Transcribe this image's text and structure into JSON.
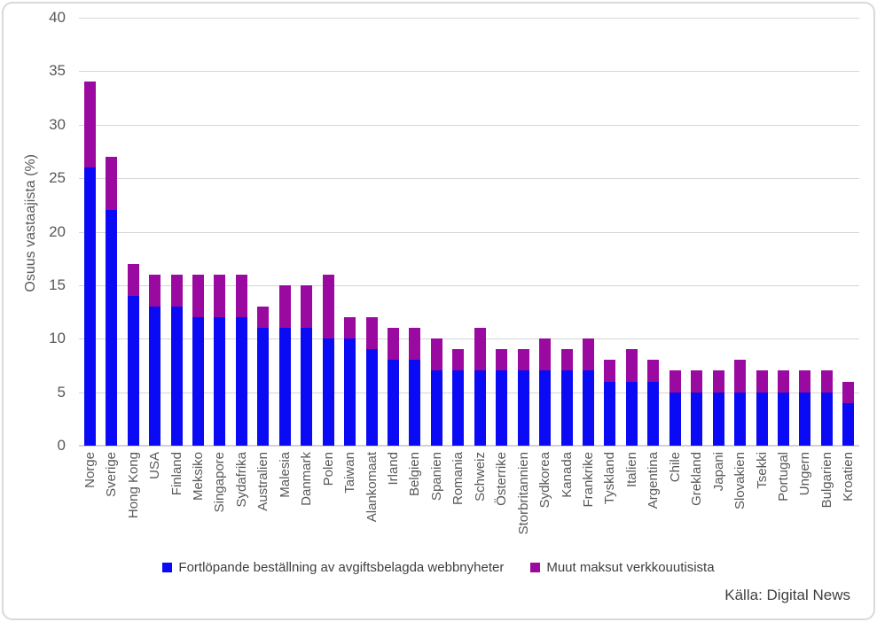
{
  "chart_data": {
    "type": "bar",
    "stacked": true,
    "ylabel": "Osuus vastaajista (%)",
    "ylim": [
      0,
      40
    ],
    "yticks": [
      0,
      5,
      10,
      15,
      20,
      25,
      30,
      35,
      40
    ],
    "grid": true,
    "legend_position": "bottom",
    "categories": [
      "Norge",
      "Sverige",
      "Hong Kong",
      "USA",
      "Finland",
      "Meksiko",
      "Singapore",
      "Sydafrika",
      "Australien",
      "Malesia",
      "Danmark",
      "Polen",
      "Taiwan",
      "Alankomaat",
      "Irland",
      "Belgien",
      "Spanien",
      "Romania",
      "Schweiz",
      "Österrike",
      "Storbritannien",
      "Sydkorea",
      "Kanada",
      "Frankrike",
      "Tyskland",
      "Italien",
      "Argentina",
      "Chile",
      "Grekland",
      "Japani",
      "Slovakien",
      "Tsekki",
      "Portugal",
      "Ungern",
      "Bulgarien",
      "Kroatien"
    ],
    "series": [
      {
        "name": "Fortlöpande beställning av avgiftsbelagda webbnyheter",
        "color": "#0a0af5",
        "values": [
          26,
          22,
          14,
          13,
          13,
          12,
          12,
          12,
          11,
          11,
          11,
          10,
          10,
          9,
          8,
          8,
          7,
          7,
          7,
          7,
          7,
          7,
          7,
          7,
          6,
          6,
          6,
          5,
          5,
          5,
          5,
          5,
          5,
          5,
          5,
          4
        ]
      },
      {
        "name": "Muut maksut verkkouutisista",
        "color": "#9b0aa0",
        "values": [
          8,
          5,
          3,
          3,
          3,
          4,
          4,
          4,
          2,
          4,
          4,
          6,
          2,
          3,
          3,
          3,
          3,
          2,
          4,
          2,
          2,
          3,
          2,
          3,
          2,
          3,
          2,
          2,
          2,
          2,
          3,
          2,
          2,
          2,
          2,
          2
        ]
      }
    ],
    "totals": [
      34,
      27,
      17,
      16,
      16,
      16,
      16,
      16,
      13,
      15,
      15,
      16,
      12,
      12,
      11,
      11,
      10,
      9,
      11,
      9,
      9,
      10,
      9,
      10,
      8,
      9,
      8,
      7,
      7,
      7,
      8,
      7,
      7,
      7,
      7,
      6
    ]
  },
  "source_note": "Källa: Digital News",
  "colors": {
    "subscription_blue": "#0a0af5",
    "other_payment_purple": "#9b0aa0",
    "gridline_gray": "#d6d6d6",
    "axis_text_gray": "#595959",
    "legend_text_gray": "#404040"
  }
}
